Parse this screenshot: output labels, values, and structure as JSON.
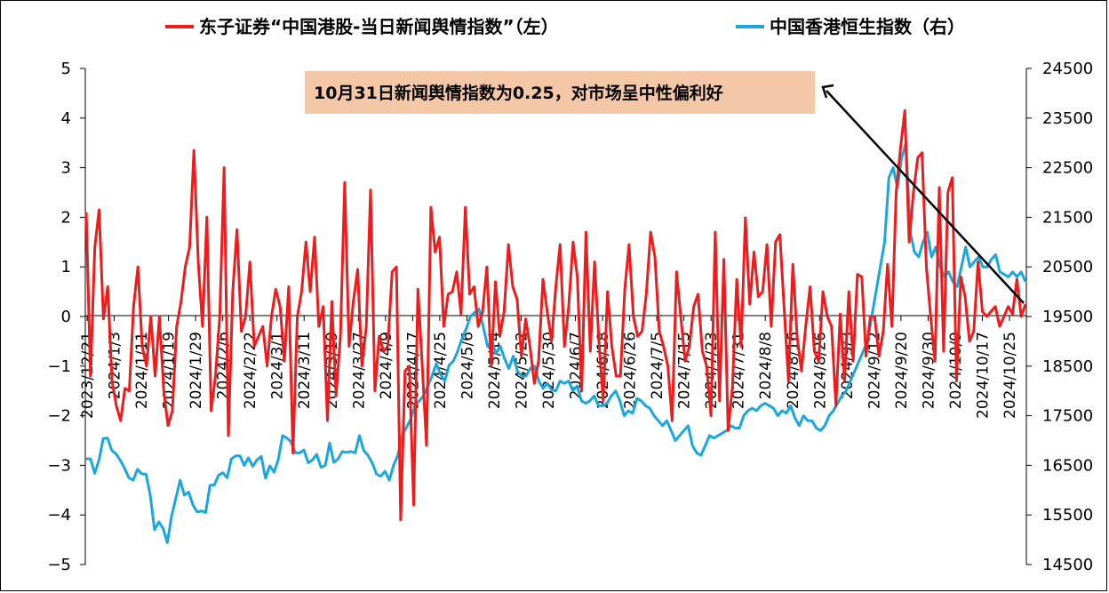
{
  "chart_data": {
    "type": "line",
    "legend": [
      {
        "name": "东子证券“中国港股-当日新闻舆情指数”（左）",
        "color": "#ee1c1c"
      },
      {
        "name": "中国香港恒生指数（右）",
        "color": "#1aa7e0"
      }
    ],
    "legend_position": "top",
    "y_left": {
      "ylim": [
        -5,
        5
      ],
      "ticks": [
        "−5",
        "−4",
        "−3",
        "−2",
        "−1",
        "0",
        "1",
        "2",
        "3",
        "4",
        "5"
      ]
    },
    "y_right": {
      "ylim": [
        14500,
        24500
      ],
      "ticks": [
        "14500",
        "15500",
        "16500",
        "17500",
        "18500",
        "19500",
        "20500",
        "21500",
        "22500",
        "23500",
        "24500"
      ]
    },
    "x_tick_labels": [
      "2023/12/21",
      "2024/1/3",
      "2024/1/11",
      "2024/1/19",
      "2024/1/29",
      "2024/2/6",
      "2024/2/22",
      "2024/3/1",
      "2024/3/11",
      "2024/3/19",
      "2024/3/27",
      "2024/4/9",
      "2024/4/17",
      "2024/4/25",
      "2024/5/6",
      "2024/5/14",
      "2024/5/22",
      "2024/5/30",
      "2024/6/7",
      "2024/6/18",
      "2024/6/26",
      "2024/7/5",
      "2024/7/15",
      "2024/7/23",
      "2024/7/31",
      "2024/8/8",
      "2024/8/16",
      "2024/8/26",
      "2024/9/3",
      "2024/9/12",
      "2024/9/20",
      "2024/9/30",
      "2024/10/9",
      "2024/10/17",
      "2024/10/25"
    ],
    "annotation": "10月31日新闻舆情指数为0.25，对市场呈中性偏利好",
    "annotation_bg": "#f4c8a7",
    "grid": false,
    "series": [
      {
        "name": "东子证券“中国港股-当日新闻舆情指数”（左）",
        "axis": "left",
        "color": "#ee1c1c",
        "values": [
          2.1,
          -1.2,
          1.4,
          2.15,
          -0.05,
          0.6,
          -1.3,
          -1.8,
          -2.1,
          -1.45,
          -1.5,
          0.2,
          1.0,
          -0.6,
          -1.0,
          0.0,
          -1.2,
          0.0,
          -1.5,
          -2.2,
          -1.9,
          -0.2,
          0.3,
          1.0,
          1.4,
          3.35,
          1.1,
          -0.2,
          2.0,
          -1.9,
          -1.2,
          0.0,
          3.0,
          -2.4,
          0.5,
          1.75,
          -0.3,
          0.0,
          1.1,
          -0.6,
          -0.4,
          -0.2,
          -1.0,
          0.0,
          0.55,
          0.2,
          -0.9,
          0.6,
          -2.75,
          0.0,
          0.5,
          1.5,
          0.5,
          1.6,
          -0.2,
          0.2,
          -2.1,
          0.3,
          -1.6,
          -0.4,
          2.7,
          -0.6,
          0.3,
          0.95,
          -1.0,
          -0.2,
          2.55,
          -1.5,
          -0.4,
          -0.7,
          -0.6,
          0.9,
          1.0,
          -4.1,
          -1.1,
          -1.0,
          -3.8,
          0.55,
          -1.0,
          -2.6,
          2.2,
          1.3,
          1.6,
          -0.2,
          0.45,
          0.5,
          0.9,
          0.05,
          2.2,
          0.45,
          0.6,
          -0.2,
          0.1,
          1.0,
          -1.0,
          0.7,
          -0.4,
          0.1,
          1.45,
          0.6,
          0.35,
          -0.8,
          -0.05,
          -0.6,
          -1.35,
          -0.9,
          0.75,
          0.1,
          -0.5,
          0.6,
          1.45,
          -0.6,
          0.2,
          1.5,
          0.8,
          -1.5,
          1.7,
          -0.7,
          1.1,
          -0.5,
          -1.7,
          0.5,
          -0.6,
          -1.2,
          -1.2,
          0.55,
          1.45,
          0.0,
          -0.4,
          -0.3,
          0.45,
          1.7,
          1.2,
          -0.3,
          -0.6,
          -1.0,
          -2.1,
          0.9,
          0.0,
          -0.9,
          -0.6,
          0.2,
          0.45,
          -0.7,
          -1.0,
          -2.0,
          1.7,
          -1.7,
          1.15,
          -2.3,
          -1.4,
          0.75,
          -0.6,
          1.99,
          0.25,
          1.3,
          0.4,
          0.5,
          1.45,
          -0.2,
          1.5,
          1.65,
          0.15,
          -1.3,
          1.05,
          -0.4,
          -1.1,
          -0.2,
          0.6,
          -0.7,
          -0.9,
          0.5,
          0.0,
          -0.2,
          -1.8,
          0.05,
          -1.3,
          0.5,
          -0.9,
          0.85,
          0.8,
          -0.8,
          0.0,
          0.0,
          -0.8,
          -0.3,
          1.05,
          -0.2,
          2.5,
          3.4,
          4.15,
          1.5,
          2.5,
          3.2,
          3.3,
          1.0,
          0.0,
          -0.9,
          2.6,
          -0.7,
          2.5,
          2.8,
          -1.3,
          0.8,
          0.4,
          -0.5,
          -0.3,
          1.1,
          0.1,
          0.0,
          0.1,
          0.2,
          -0.2,
          0.0,
          0.2,
          0.05,
          0.75,
          0.0,
          0.25
        ]
      },
      {
        "name": "中国香港恒生指数（右）",
        "axis": "right",
        "color": "#1aa7e0",
        "values": [
          16630,
          16630,
          16340,
          16610,
          17040,
          17050,
          16800,
          16730,
          16600,
          16440,
          16250,
          16200,
          16420,
          16330,
          16320,
          15900,
          15200,
          15360,
          15230,
          14940,
          15480,
          15840,
          16200,
          15900,
          15960,
          15700,
          15560,
          15580,
          15550,
          16100,
          16100,
          16300,
          16350,
          16250,
          16630,
          16690,
          16690,
          16500,
          16650,
          16480,
          16610,
          16680,
          16240,
          16490,
          16360,
          16620,
          17100,
          17050,
          16970,
          16750,
          16750,
          16810,
          16550,
          16610,
          16720,
          16460,
          16500,
          16950,
          16560,
          16630,
          16780,
          16760,
          16780,
          16750,
          17100,
          16800,
          16700,
          16550,
          16320,
          16280,
          16380,
          16200,
          16500,
          16700,
          17100,
          17260,
          17430,
          17700,
          17800,
          17900,
          18100,
          18300,
          18550,
          18330,
          18200,
          18520,
          18600,
          18800,
          19050,
          19250,
          19500,
          19580,
          19650,
          19300,
          18900,
          19000,
          18750,
          18900,
          18650,
          18450,
          18700,
          18400,
          18300,
          18300,
          18450,
          18500,
          18200,
          18050,
          18150,
          18020,
          18000,
          18200,
          18150,
          18200,
          18000,
          18100,
          17800,
          17750,
          17800,
          17900,
          17700,
          17700,
          17750,
          17900,
          18000,
          17800,
          17500,
          17600,
          17550,
          17850,
          17800,
          17700,
          17650,
          17500,
          17400,
          17300,
          17400,
          17200,
          17000,
          17100,
          17200,
          17300,
          16900,
          16750,
          16700,
          16900,
          17100,
          17050,
          17100,
          17150,
          17200,
          17300,
          17250,
          17250,
          17500,
          17600,
          17650,
          17600,
          17700,
          17750,
          17700,
          17650,
          17500,
          17600,
          17550,
          17700,
          17450,
          17300,
          17500,
          17400,
          17400,
          17250,
          17200,
          17300,
          17500,
          17600,
          17750,
          17900,
          18000,
          18200,
          18400,
          18600,
          18800,
          19000,
          19500,
          20000,
          20500,
          21000,
          22300,
          22500,
          22100,
          22700,
          23000,
          21200,
          20800,
          20700,
          21000,
          21200,
          20700,
          20900,
          20500,
          20300,
          20400,
          20200,
          20100,
          20500,
          20900,
          20500,
          20600,
          20700,
          20500,
          20500,
          20650,
          20750,
          20400,
          20350,
          20300,
          20400,
          20300,
          20400,
          20200
        ]
      }
    ]
  }
}
